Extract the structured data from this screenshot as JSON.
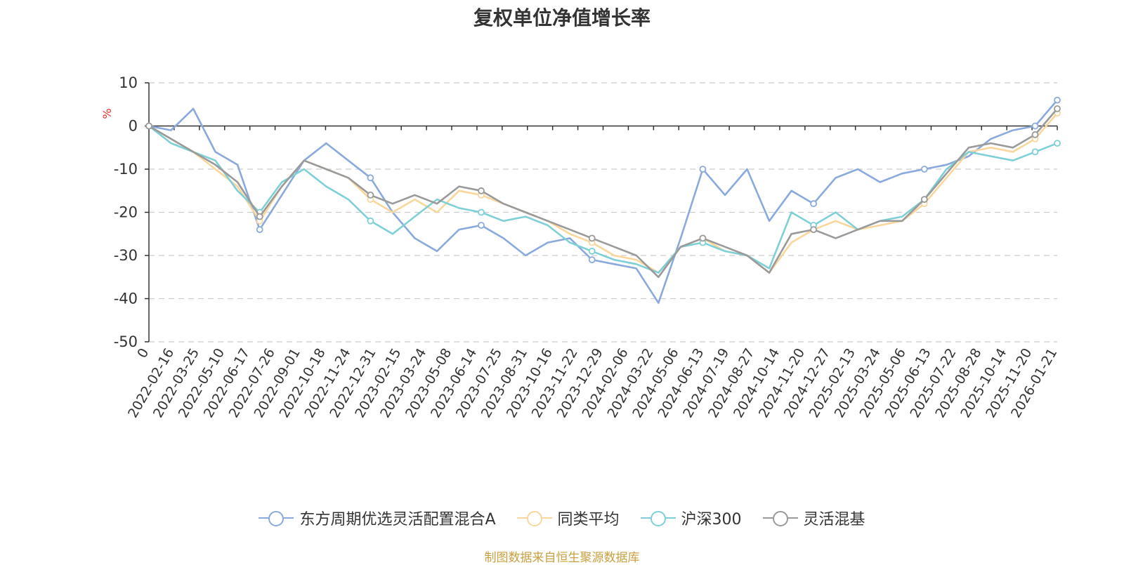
{
  "chart_data": {
    "type": "line",
    "title": "复权单位净值增长率",
    "ylabel": "%",
    "xlabel": "",
    "ylim": [
      -50,
      10
    ],
    "yticks": [
      10,
      0,
      -10,
      -20,
      -30,
      -40,
      -50
    ],
    "xticks": [
      "0",
      "2022-02-16",
      "2022-03-25",
      "2022-05-10",
      "2022-06-17",
      "2022-07-26",
      "2022-09-01",
      "2022-10-18",
      "2022-11-24",
      "2022-12-31",
      "2023-02-15",
      "2023-03-24",
      "2023-05-08",
      "2023-06-14",
      "2023-07-25",
      "2023-08-31",
      "2023-10-16",
      "2023-11-22",
      "2023-12-29",
      "2024-02-06",
      "2024-03-22",
      "2024-05-06",
      "2024-06-13",
      "2024-07-19",
      "2024-08-27",
      "2024-10-14",
      "2024-11-20",
      "2024-12-27",
      "2025-02-13",
      "2025-03-24",
      "2025-05-06",
      "2025-06-13",
      "2025-07-22",
      "2025-08-28",
      "2025-10-14",
      "2025-11-20",
      "2026-01-21"
    ],
    "grid": "horizontal-dashed",
    "legend_position": "bottom",
    "series": [
      {
        "name": "东方周期优选灵活配置混合A",
        "color": "#8aa9dc",
        "values": [
          0,
          -1,
          4,
          -6,
          -9,
          -24,
          -16,
          -8,
          -4,
          -8,
          -12,
          -20,
          -26,
          -29,
          -24,
          -23,
          -26,
          -30,
          -27,
          -26,
          -31,
          -32,
          -33,
          -41,
          -26,
          -10,
          -16,
          -10,
          -22,
          -15,
          -18,
          -12,
          -10,
          -13,
          -11,
          -10,
          -9,
          -7,
          -3,
          -1,
          0,
          6
        ]
      },
      {
        "name": "同类平均",
        "color": "#f9d79c",
        "values": [
          0,
          -3,
          -6,
          -10,
          -14,
          -22,
          -14,
          -8,
          -10,
          -12,
          -17,
          -20,
          -17,
          -20,
          -15,
          -16,
          -18,
          -20,
          -22,
          -25,
          -27,
          -30,
          -31,
          -34,
          -28,
          -26,
          -29,
          -30,
          -34,
          -27,
          -24,
          -22,
          -24,
          -23,
          -22,
          -18,
          -12,
          -6,
          -5,
          -6,
          -3,
          3
        ]
      },
      {
        "name": "沪深300",
        "color": "#7fd0d6",
        "values": [
          0,
          -4,
          -6,
          -8,
          -15,
          -20,
          -13,
          -10,
          -14,
          -17,
          -22,
          -25,
          -21,
          -17,
          -19,
          -20,
          -22,
          -21,
          -23,
          -27,
          -29,
          -31,
          -32,
          -34,
          -28,
          -27,
          -29,
          -30,
          -33,
          -20,
          -23,
          -20,
          -24,
          -22,
          -21,
          -17,
          -10,
          -6,
          -7,
          -8,
          -6,
          -4
        ]
      },
      {
        "name": "灵活混基",
        "color": "#9a9a9a",
        "values": [
          0,
          -3,
          -6,
          -9,
          -13,
          -21,
          -14,
          -8,
          -10,
          -12,
          -16,
          -18,
          -16,
          -18,
          -14,
          -15,
          -18,
          -20,
          -22,
          -24,
          -26,
          -28,
          -30,
          -35,
          -28,
          -26,
          -28,
          -30,
          -34,
          -25,
          -24,
          -26,
          -24,
          -22,
          -22,
          -17,
          -11,
          -5,
          -4,
          -5,
          -2,
          4
        ]
      }
    ]
  },
  "source_text": "制图数据来自恒生聚源数据库"
}
